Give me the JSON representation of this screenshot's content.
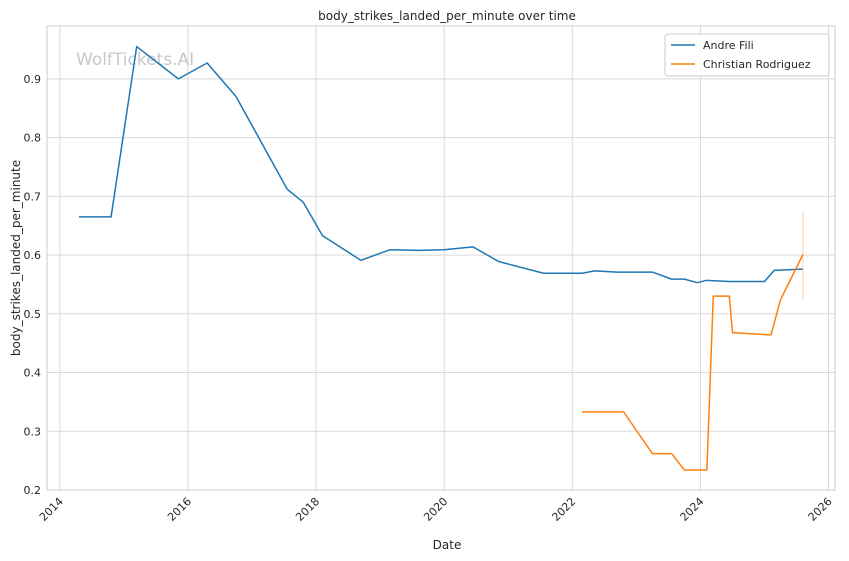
{
  "chart_data": {
    "type": "line",
    "title": "body_strikes_landed_per_minute over time",
    "xlabel": "Date",
    "ylabel": "body_strikes_landed_per_minute",
    "watermark": "WolfTickets.AI",
    "xlim": [
      2013.8,
      2026.1
    ],
    "ylim": [
      0.2,
      0.99
    ],
    "grid": true,
    "legend_position": "top-right",
    "x_ticks": [
      2014,
      2016,
      2018,
      2020,
      2022,
      2024,
      2026
    ],
    "x_tick_labels": [
      "2014",
      "2016",
      "2018",
      "2020",
      "2022",
      "2024",
      "2026"
    ],
    "y_ticks": [
      0.2,
      0.3,
      0.4,
      0.5,
      0.6,
      0.7,
      0.8,
      0.9
    ],
    "y_tick_labels": [
      "0.2",
      "0.3",
      "0.4",
      "0.5",
      "0.6",
      "0.7",
      "0.8",
      "0.9"
    ],
    "series": [
      {
        "name": "Andre Fili",
        "color": "#1f77b4",
        "points": [
          [
            2014.3,
            0.665
          ],
          [
            2014.8,
            0.665
          ],
          [
            2015.2,
            0.955
          ],
          [
            2015.85,
            0.9
          ],
          [
            2016.3,
            0.927
          ],
          [
            2016.75,
            0.87
          ],
          [
            2017.55,
            0.712
          ],
          [
            2017.8,
            0.69
          ],
          [
            2018.1,
            0.633
          ],
          [
            2018.7,
            0.591
          ],
          [
            2019.15,
            0.609
          ],
          [
            2019.6,
            0.608
          ],
          [
            2020.0,
            0.609
          ],
          [
            2020.45,
            0.614
          ],
          [
            2020.85,
            0.589
          ],
          [
            2021.55,
            0.569
          ],
          [
            2022.15,
            0.569
          ],
          [
            2022.35,
            0.573
          ],
          [
            2022.7,
            0.571
          ],
          [
            2023.25,
            0.571
          ],
          [
            2023.55,
            0.559
          ],
          [
            2023.75,
            0.559
          ],
          [
            2023.95,
            0.553
          ],
          [
            2024.1,
            0.557
          ],
          [
            2024.45,
            0.555
          ],
          [
            2025.0,
            0.555
          ],
          [
            2025.15,
            0.574
          ],
          [
            2025.6,
            0.576
          ]
        ]
      },
      {
        "name": "Christian Rodriguez",
        "color": "#ff7f0e",
        "points": [
          [
            2022.15,
            0.333
          ],
          [
            2022.8,
            0.333
          ],
          [
            2023.25,
            0.262
          ],
          [
            2023.55,
            0.262
          ],
          [
            2023.75,
            0.234
          ],
          [
            2024.1,
            0.234
          ],
          [
            2024.2,
            0.53
          ],
          [
            2024.45,
            0.53
          ],
          [
            2024.5,
            0.468
          ],
          [
            2025.1,
            0.464
          ],
          [
            2025.25,
            0.524
          ],
          [
            2025.6,
            0.601
          ]
        ]
      }
    ],
    "annotations": [
      {
        "x": 2025.6,
        "y_low": 0.525,
        "y_high": 0.675,
        "color": "#ff7f0e"
      }
    ]
  }
}
